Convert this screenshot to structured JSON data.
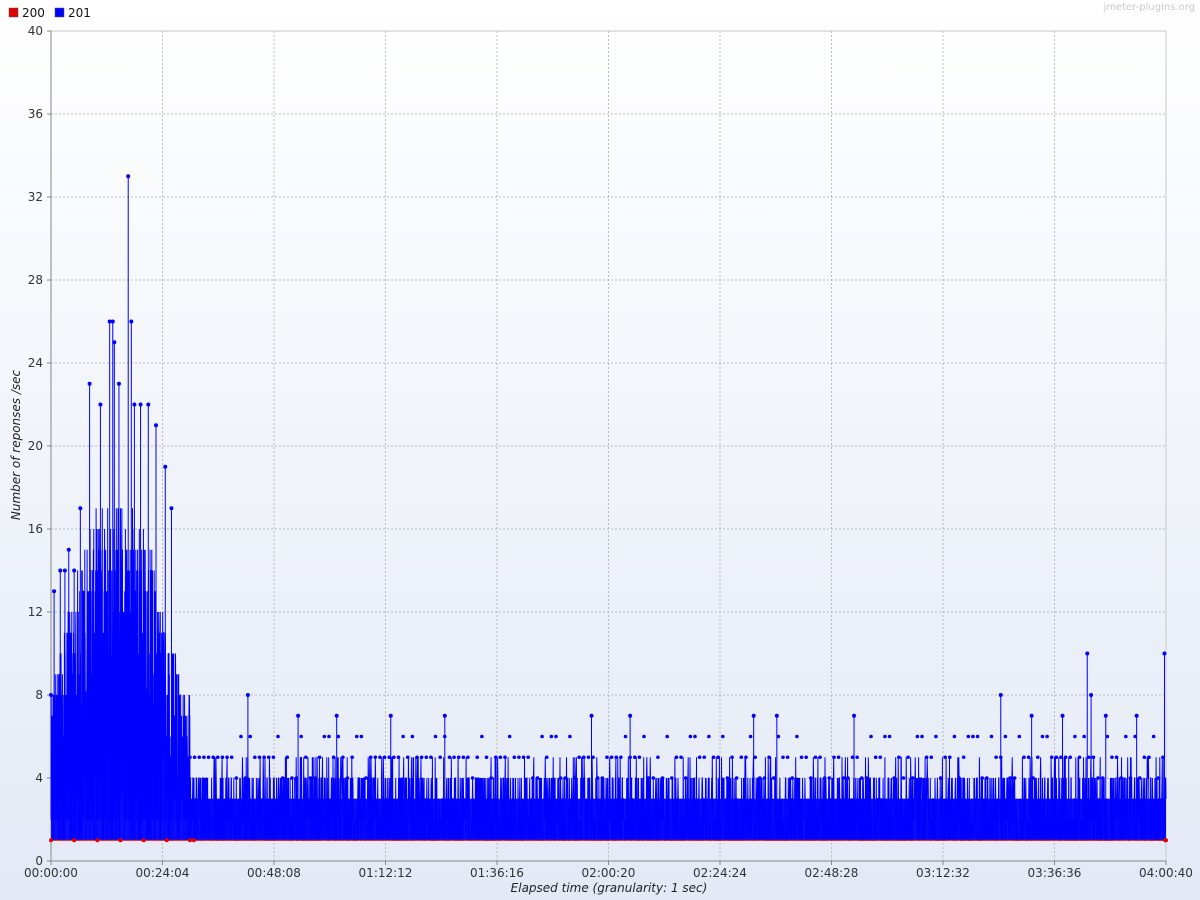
{
  "watermark": "jmeter-plugins.org",
  "colors": {
    "200": "#e00000",
    "201": "#0000ff",
    "grid": "#c0c0c0",
    "plot_bg_top": "#ffffff",
    "plot_bg_bottom": "#e3e9f5"
  },
  "chart_data": {
    "type": "line",
    "title": "",
    "xlabel": "Elapsed time (granularity: 1 sec)",
    "ylabel": "Number of reponses /sec",
    "ylim": [
      0,
      40
    ],
    "xlim_seconds": [
      0,
      14440
    ],
    "y_ticks": [
      "0",
      "4",
      "8",
      "12",
      "16",
      "20",
      "24",
      "28",
      "32",
      "36",
      "40"
    ],
    "x_ticks": [
      "00:00:00",
      "00:24:04",
      "00:48:08",
      "01:12:12",
      "01:36:16",
      "02:00:20",
      "02:24:24",
      "02:48:28",
      "03:12:32",
      "03:36:36",
      "04:00:40"
    ],
    "grid": true,
    "legend_position": "top-left",
    "series": [
      {
        "name": "200",
        "color": "#e00000",
        "points": [
          [
            0,
            1
          ],
          [
            300,
            1
          ],
          [
            600,
            1
          ],
          [
            900,
            1
          ],
          [
            1200,
            1
          ],
          [
            1500,
            1
          ],
          [
            1800,
            1
          ],
          [
            1850,
            1
          ],
          [
            14430,
            1
          ],
          [
            14440,
            1
          ]
        ]
      },
      {
        "name": "201",
        "color": "#0000ff",
        "phases": [
          {
            "from_seconds": 0,
            "to_seconds": 1800,
            "min": 1,
            "typical_high": 12,
            "peak": 33
          },
          {
            "from_seconds": 1800,
            "to_seconds": 14440,
            "min": 1,
            "typical_high": 5,
            "peak": 10
          }
        ],
        "peaks": [
          [
            0,
            8
          ],
          [
            40,
            13
          ],
          [
            120,
            14
          ],
          [
            180,
            14
          ],
          [
            230,
            15
          ],
          [
            300,
            14
          ],
          [
            380,
            17
          ],
          [
            500,
            23
          ],
          [
            640,
            22
          ],
          [
            760,
            26
          ],
          [
            800,
            26
          ],
          [
            820,
            25
          ],
          [
            880,
            23
          ],
          [
            1000,
            33
          ],
          [
            1040,
            26
          ],
          [
            1080,
            22
          ],
          [
            1160,
            22
          ],
          [
            1260,
            22
          ],
          [
            1360,
            21
          ],
          [
            1480,
            19
          ],
          [
            1560,
            17
          ],
          [
            2550,
            8
          ],
          [
            3200,
            7
          ],
          [
            3700,
            7
          ],
          [
            4400,
            7
          ],
          [
            5100,
            7
          ],
          [
            7000,
            7
          ],
          [
            7500,
            7
          ],
          [
            9100,
            7
          ],
          [
            9400,
            7
          ],
          [
            10400,
            7
          ],
          [
            12300,
            8
          ],
          [
            12700,
            7
          ],
          [
            13100,
            7
          ],
          [
            13420,
            10
          ],
          [
            13470,
            8
          ],
          [
            13660,
            7
          ],
          [
            14060,
            7
          ],
          [
            14420,
            10
          ]
        ]
      }
    ]
  }
}
